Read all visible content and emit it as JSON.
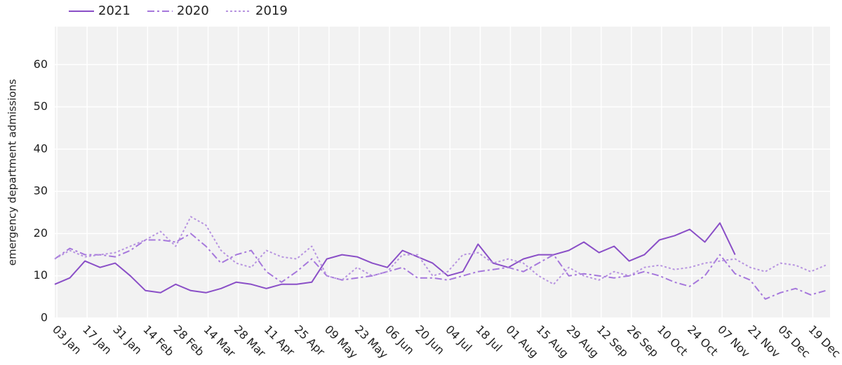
{
  "chart_data": {
    "type": "line",
    "y_label": "emergency department admissions",
    "x": [
      2,
      9,
      16,
      23,
      30,
      37,
      44,
      51,
      58,
      65,
      72,
      79,
      86,
      93,
      100,
      107,
      114,
      121,
      128,
      135,
      142,
      149,
      156,
      163,
      170,
      177,
      184,
      191,
      198,
      205,
      212,
      219,
      226,
      233,
      240,
      247,
      254,
      261,
      268,
      275,
      282,
      289,
      296,
      303,
      310,
      317,
      324,
      331,
      338,
      345,
      352,
      359
    ],
    "series": [
      {
        "name": "2021",
        "color": "#8a4fc7",
        "dash": "solid",
        "values": [
          8,
          9.5,
          13.5,
          12,
          13,
          10,
          6.5,
          6,
          8,
          6.5,
          6,
          7,
          8.5,
          8,
          7,
          8,
          8,
          8.5,
          14,
          15,
          14.5,
          13,
          12,
          16,
          14.5,
          13,
          10,
          11,
          17.5,
          13,
          12,
          14,
          15,
          15,
          16,
          18,
          15.5,
          17,
          13.5,
          15,
          18.5,
          19.5,
          21,
          18,
          22.5,
          15,
          null,
          null,
          null,
          null,
          null,
          null
        ]
      },
      {
        "name": "2020",
        "color": "#a678dc",
        "dash": "dashdot",
        "values": [
          14,
          16.5,
          15,
          15,
          14.5,
          16,
          18.5,
          18.5,
          18,
          20,
          17,
          13,
          15,
          16,
          11,
          8.5,
          11,
          14,
          10,
          9,
          9.5,
          10,
          11,
          12,
          9.5,
          9.5,
          9,
          10,
          11,
          11.5,
          12,
          11,
          13,
          15,
          10,
          10.5,
          10,
          9.5,
          10,
          11,
          10,
          8.5,
          7.5,
          10,
          15,
          10.5,
          9,
          4.5,
          6,
          7,
          5.5,
          6.5
        ]
      },
      {
        "name": "2019",
        "color": "#b794e0",
        "dash": "dotted",
        "values": [
          14,
          16,
          14.5,
          15,
          15.5,
          17,
          18.5,
          20.5,
          17,
          24,
          22,
          16,
          13,
          12,
          16,
          14.5,
          14,
          17,
          10,
          9,
          12,
          10,
          11,
          15,
          15,
          10,
          11,
          15,
          15.5,
          13,
          14,
          13,
          10,
          8,
          12,
          10,
          9,
          11,
          10,
          12,
          12.5,
          11.5,
          12,
          13,
          13.5,
          14,
          12,
          11,
          13,
          12.5,
          11,
          12.5
        ]
      }
    ],
    "xlim": [
      2,
      361
    ],
    "xticks": [
      {
        "value": 3,
        "label": "03 Jan"
      },
      {
        "value": 17,
        "label": "17 Jan"
      },
      {
        "value": 31,
        "label": "31 Jan"
      },
      {
        "value": 45,
        "label": "14 Feb"
      },
      {
        "value": 59,
        "label": "28 Feb"
      },
      {
        "value": 73,
        "label": "14 Mar"
      },
      {
        "value": 87,
        "label": "28 Mar"
      },
      {
        "value": 101,
        "label": "11 Apr"
      },
      {
        "value": 115,
        "label": "25 Apr"
      },
      {
        "value": 129,
        "label": "09 May"
      },
      {
        "value": 143,
        "label": "23 May"
      },
      {
        "value": 157,
        "label": "06 Jun"
      },
      {
        "value": 171,
        "label": "20 Jun"
      },
      {
        "value": 185,
        "label": "04 Jul"
      },
      {
        "value": 199,
        "label": "18 Jul"
      },
      {
        "value": 213,
        "label": "01 Aug"
      },
      {
        "value": 227,
        "label": "15 Aug"
      },
      {
        "value": 241,
        "label": "29 Aug"
      },
      {
        "value": 255,
        "label": "12 Sep"
      },
      {
        "value": 269,
        "label": "26 Sep"
      },
      {
        "value": 283,
        "label": "10 Oct"
      },
      {
        "value": 297,
        "label": "24 Oct"
      },
      {
        "value": 311,
        "label": "07 Nov"
      },
      {
        "value": 325,
        "label": "21 Nov"
      },
      {
        "value": 339,
        "label": "05 Dec"
      },
      {
        "value": 353,
        "label": "19 Dec"
      }
    ],
    "ylim": [
      0,
      69
    ],
    "yticks": [
      0,
      10,
      20,
      30,
      40,
      50,
      60
    ],
    "grid": true,
    "legend": "top-left"
  }
}
